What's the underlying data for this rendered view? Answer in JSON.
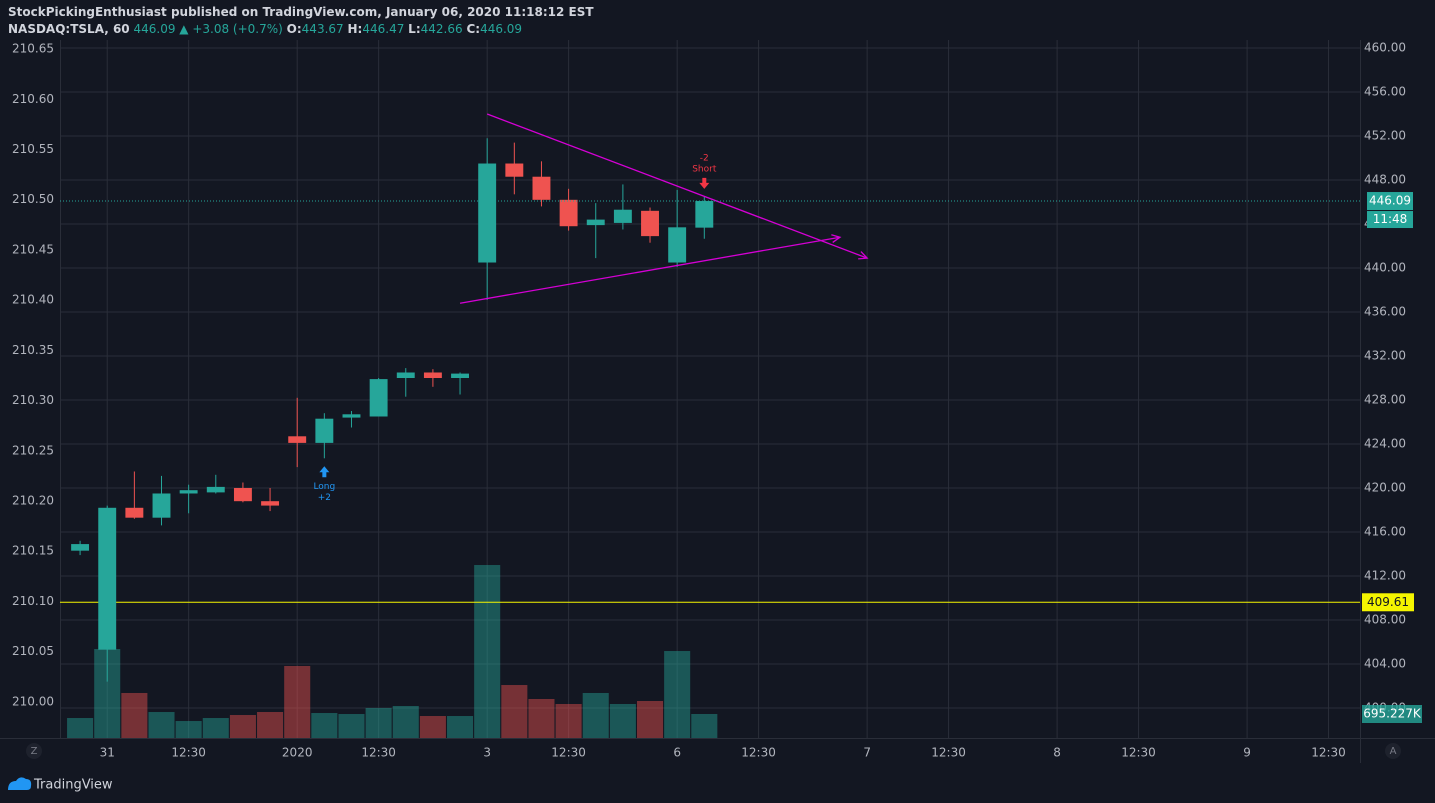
{
  "header": {
    "line1": "StockPickingEnthusiast published on TradingView.com, January 06, 2020 11:18:12 EST",
    "symbol": "NASDAQ:TSLA, 60",
    "change": "▲ +3.08 (+0.7%)",
    "o_label": "O:",
    "h_label": "H:",
    "l_label": "L:",
    "c_label": "C:"
  },
  "chart_data": {
    "type": "candlestick",
    "xlim": [
      -0.74,
      47.16
    ],
    "xticks": [
      {
        "value": 1,
        "label": "31"
      },
      {
        "value": 4,
        "label": "12:30"
      },
      {
        "value": 8,
        "label": "2020"
      },
      {
        "value": 11,
        "label": "12:30"
      },
      {
        "value": 15,
        "label": "3"
      },
      {
        "value": 18,
        "label": "12:30"
      },
      {
        "value": 22,
        "label": "6"
      },
      {
        "value": 25,
        "label": "12:30"
      },
      {
        "value": 29,
        "label": "7"
      },
      {
        "value": 32,
        "label": "12:30"
      },
      {
        "value": 36,
        "label": "8"
      },
      {
        "value": 39,
        "label": "12:30"
      },
      {
        "value": 43,
        "label": "9"
      },
      {
        "value": 46,
        "label": "12:30"
      }
    ],
    "ylim": [
      397.27,
      460.73
    ],
    "yticks": [
      {
        "value": 460,
        "label": "460.00"
      },
      {
        "value": 456,
        "label": "456.00"
      },
      {
        "value": 452,
        "label": "452.00"
      },
      {
        "value": 448,
        "label": "448.00"
      },
      {
        "value": 444,
        "label": "444.00"
      },
      {
        "value": 440,
        "label": "440.00"
      },
      {
        "value": 436,
        "label": "436.00"
      },
      {
        "value": 432,
        "label": "432.00"
      },
      {
        "value": 428,
        "label": "428.00"
      },
      {
        "value": 424,
        "label": "424.00"
      },
      {
        "value": 420,
        "label": "420.00"
      },
      {
        "value": 416,
        "label": "416.00"
      },
      {
        "value": 412,
        "label": "412.00"
      },
      {
        "value": 408,
        "label": "408.00"
      },
      {
        "value": 404,
        "label": "404.00"
      },
      {
        "value": 400,
        "label": "400.00"
      }
    ],
    "left_ylim": [
      209.964,
      210.659
    ],
    "left_yticks": [
      210.65,
      {
        "value": 210.6,
        "label": "210.60"
      },
      210.55,
      {
        "value": 210.5,
        "label": "210.50"
      },
      210.45,
      {
        "value": 210.4,
        "label": "210.40"
      },
      210.35,
      {
        "value": 210.3,
        "label": "210.30"
      },
      210.25,
      {
        "value": 210.2,
        "label": "210.20"
      },
      210.15,
      {
        "value": 210.1,
        "label": "210.10"
      },
      210.05,
      {
        "value": 210,
        "label": "210.00"
      }
    ],
    "volume_ylim": [
      0,
      20220000
    ],
    "up_color": "#26a69a",
    "down_color": "#ef5350",
    "grid": true,
    "open": [
      414.3,
      405.3,
      418.2,
      417.3,
      419.5,
      419.6,
      420.0,
      418.8,
      424.7,
      424.1,
      426.4,
      426.5,
      430.0,
      430.5,
      430.0,
      440.5,
      449.5,
      448.3,
      446.2,
      443.9,
      444.1,
      445.2,
      440.5,
      443.67
    ],
    "high": [
      415.2,
      418.4,
      421.5,
      421.1,
      420.3,
      421.2,
      420.5,
      420.0,
      428.2,
      426.8,
      427.0,
      430.0,
      430.9,
      430.8,
      430.5,
      451.8,
      451.4,
      449.7,
      447.2,
      445.9,
      447.6,
      445.5,
      447.1,
      446.47
    ],
    "low": [
      413.9,
      402.4,
      417.2,
      416.6,
      417.7,
      419.5,
      418.7,
      417.9,
      421.9,
      422.7,
      425.5,
      426.5,
      428.3,
      429.2,
      428.5,
      437.1,
      446.7,
      445.6,
      443.4,
      440.9,
      443.5,
      442.3,
      440.1,
      442.66
    ],
    "close": [
      414.9,
      418.2,
      417.3,
      419.5,
      419.8,
      420.1,
      418.8,
      418.4,
      424.1,
      426.3,
      426.7,
      429.9,
      430.5,
      430.0,
      430.4,
      449.5,
      448.3,
      446.2,
      443.8,
      444.4,
      445.3,
      442.9,
      443.7,
      446.09
    ],
    "volume": [
      579000,
      2578000,
      1304000,
      753000,
      492000,
      579000,
      666000,
      753000,
      2086000,
      724000,
      695000,
      869000,
      927000,
      637000,
      637000,
      5011000,
      1535000,
      1130000,
      985000,
      1304000,
      985000,
      1072000,
      2520000,
      695227
    ],
    "volume_label": "695.227K",
    "hline": {
      "value": 409.61,
      "color": "#f5f500"
    },
    "countdown": "11:48",
    "trendlines": [
      {
        "x": [
          15,
          29
        ],
        "y": [
          454.0,
          440.9
        ],
        "color": "#d500d5"
      },
      {
        "x": [
          14,
          28
        ],
        "y": [
          436.8,
          442.8
        ],
        "color": "#d500d5"
      }
    ],
    "signals": [
      {
        "x": 9,
        "text": [
          "Long",
          "+2"
        ],
        "color": "#2196f3",
        "side": "below"
      },
      {
        "x": 23,
        "text": [
          "-2",
          "Short"
        ],
        "color": "#f23645",
        "side": "above"
      }
    ]
  },
  "buttons": [
    "Z",
    "A"
  ],
  "footer": "TradingView"
}
